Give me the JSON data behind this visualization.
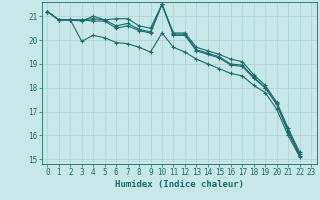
{
  "xlabel": "Humidex (Indice chaleur)",
  "ylabel": "",
  "xlim": [
    -0.5,
    23.5
  ],
  "ylim": [
    14.8,
    21.6
  ],
  "yticks": [
    15,
    16,
    17,
    18,
    19,
    20,
    21
  ],
  "xticks": [
    0,
    1,
    2,
    3,
    4,
    5,
    6,
    7,
    8,
    9,
    10,
    11,
    12,
    13,
    14,
    15,
    16,
    17,
    18,
    19,
    20,
    21,
    22,
    23
  ],
  "bg_color": "#c8e8e8",
  "line_color": "#1a6b6b",
  "grid_color": "#b0d4d4",
  "lines": [
    {
      "x": [
        0,
        1,
        2,
        3,
        4,
        5,
        6,
        7,
        8,
        9,
        10,
        11,
        12,
        13,
        14,
        15,
        16,
        17,
        18,
        19,
        20,
        21,
        22,
        23
      ],
      "y": [
        21.2,
        20.85,
        20.85,
        20.8,
        21.0,
        20.85,
        20.9,
        20.9,
        20.6,
        20.5,
        21.5,
        20.3,
        20.3,
        19.7,
        19.55,
        19.4,
        19.2,
        19.1,
        18.55,
        18.1,
        17.4,
        16.3,
        15.3,
        null
      ]
    },
    {
      "x": [
        0,
        1,
        2,
        3,
        4,
        5,
        6,
        7,
        8,
        9,
        10,
        11,
        12,
        13,
        14,
        15,
        16,
        17,
        18,
        19,
        20,
        21,
        22,
        23
      ],
      "y": [
        21.2,
        20.85,
        20.85,
        20.85,
        20.9,
        20.85,
        20.6,
        20.7,
        20.45,
        20.35,
        21.5,
        20.25,
        20.25,
        19.6,
        19.45,
        19.3,
        19.0,
        18.95,
        18.45,
        18.0,
        17.35,
        16.2,
        15.2,
        null
      ]
    },
    {
      "x": [
        0,
        1,
        2,
        3,
        4,
        5,
        6,
        7,
        8,
        9,
        10,
        11,
        12,
        13,
        14,
        15,
        16,
        17,
        18,
        19,
        20,
        21,
        22,
        23
      ],
      "y": [
        21.2,
        20.85,
        20.85,
        20.85,
        20.8,
        20.8,
        20.5,
        20.6,
        20.4,
        20.3,
        21.5,
        20.2,
        20.2,
        19.55,
        19.4,
        19.25,
        18.95,
        18.9,
        18.4,
        18.0,
        17.3,
        16.15,
        15.15,
        null
      ]
    },
    {
      "x": [
        0,
        1,
        2,
        3,
        4,
        5,
        6,
        7,
        8,
        9,
        10,
        11,
        12,
        13,
        14,
        15,
        16,
        17,
        18,
        19,
        20,
        21,
        22,
        23
      ],
      "y": [
        21.2,
        20.85,
        20.85,
        19.95,
        20.2,
        20.1,
        19.9,
        19.85,
        19.7,
        19.5,
        20.3,
        19.7,
        19.5,
        19.2,
        19.0,
        18.8,
        18.6,
        18.5,
        18.1,
        17.8,
        17.1,
        16.0,
        15.1,
        null
      ]
    }
  ]
}
